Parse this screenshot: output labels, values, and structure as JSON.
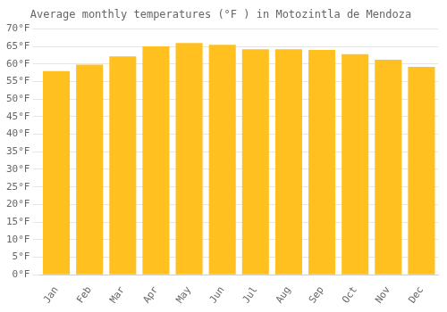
{
  "chart_data": {
    "type": "bar",
    "title": "Average monthly temperatures (°F ) in Motozintla de Mendoza",
    "categories": [
      "Jan",
      "Feb",
      "Mar",
      "Apr",
      "May",
      "Jun",
      "Jul",
      "Aug",
      "Sep",
      "Oct",
      "Nov",
      "Dec"
    ],
    "values": [
      58.0,
      59.8,
      62.2,
      65.0,
      66.0,
      65.5,
      64.2,
      64.2,
      64.0,
      62.8,
      61.2,
      59.2
    ],
    "color": "#FFC020",
    "ylim": [
      0,
      70
    ],
    "yticks": [
      {
        "value": 0,
        "label": "0°F"
      },
      {
        "value": 5,
        "label": "5°F"
      },
      {
        "value": 10,
        "label": "10°F"
      },
      {
        "value": 15,
        "label": "15°F"
      },
      {
        "value": 20,
        "label": "20°F"
      },
      {
        "value": 25,
        "label": "25°F"
      },
      {
        "value": 30,
        "label": "30°F"
      },
      {
        "value": 35,
        "label": "35°F"
      },
      {
        "value": 40,
        "label": "40°F"
      },
      {
        "value": 45,
        "label": "45°F"
      },
      {
        "value": 50,
        "label": "50°F"
      },
      {
        "value": 55,
        "label": "55°F"
      },
      {
        "value": 60,
        "label": "60°F"
      },
      {
        "value": 65,
        "label": "65°F"
      },
      {
        "value": 70,
        "label": "70°F"
      }
    ],
    "grid": true
  }
}
